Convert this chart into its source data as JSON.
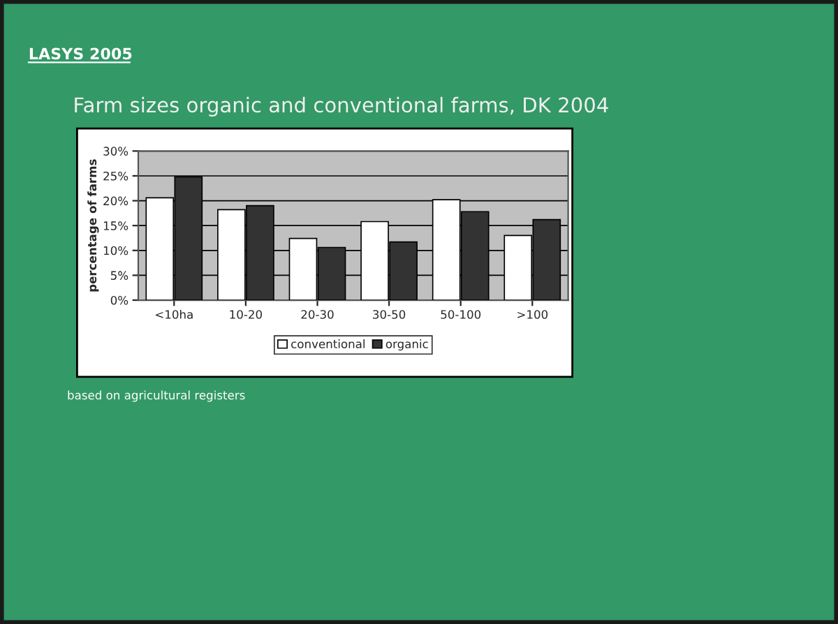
{
  "chart_data": {
    "type": "bar",
    "title": "Farm sizes organic and conventional farms, DK 2004",
    "subtitle": "LASYS 2005",
    "ylabel": "percentage of farms",
    "categories": [
      "<10ha",
      "10-20",
      "20-30",
      "30-50",
      "50-100",
      ">100"
    ],
    "series": [
      {
        "name": "conventional",
        "color": "#ffffff",
        "values": [
          20.6,
          18.2,
          12.4,
          15.8,
          20.2,
          13.0
        ]
      },
      {
        "name": "organic",
        "color": "#333333",
        "values": [
          24.8,
          19.0,
          10.6,
          11.7,
          17.8,
          16.2
        ]
      }
    ],
    "ylim": [
      0,
      30
    ],
    "yticks": [
      {
        "value": 0,
        "label": "0%"
      },
      {
        "value": 5,
        "label": "5%"
      },
      {
        "value": 10,
        "label": "10%"
      },
      {
        "value": 15,
        "label": "15%"
      },
      {
        "value": 20,
        "label": "20%"
      },
      {
        "value": 25,
        "label": "25%"
      },
      {
        "value": 30,
        "label": "30%"
      }
    ],
    "grid": "y",
    "legend": "bottom",
    "annotations": [
      "based on agricultural registers"
    ]
  }
}
